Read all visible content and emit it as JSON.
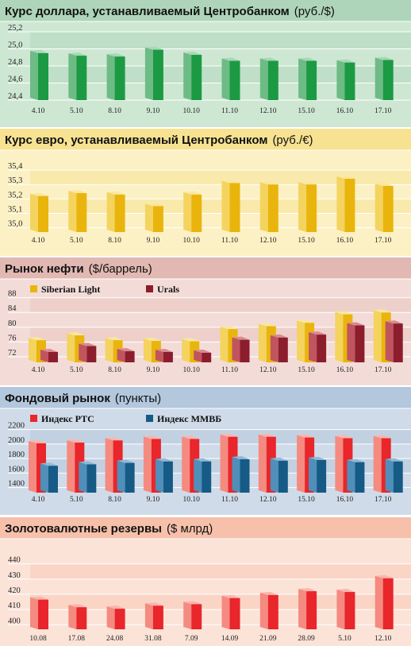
{
  "chart_data": [
    {
      "id": "usd",
      "type": "bar",
      "title": "Курс доллара, устанавливаемый Центробанком",
      "unit": "(руб./$)",
      "categories": [
        "4.10",
        "5.10",
        "8.10",
        "9.10",
        "10.10",
        "11.10",
        "12.10",
        "15.10",
        "16.10",
        "17.10"
      ],
      "yticks": [
        "25,2",
        "25,0",
        "24,8",
        "24,6",
        "24,4"
      ],
      "ylim": [
        24.4,
        25.2
      ],
      "series": [
        {
          "values": [
            24.95,
            24.92,
            24.91,
            24.99,
            24.93,
            24.86,
            24.86,
            24.86,
            24.84,
            24.87
          ]
        }
      ],
      "colors": {
        "bg": "#cde7d3",
        "band": "#b9dcc3",
        "title_bg": "#aed5b9",
        "bar": "#1c9a43",
        "bar_side": "#6dbb85",
        "bar_top": "#a8d8b5"
      }
    },
    {
      "id": "eur",
      "type": "bar",
      "title": "Курс евро, устанавливаемый Центробанком",
      "unit": "(руб./€)",
      "categories": [
        "4.10",
        "5.10",
        "8.10",
        "9.10",
        "10.10",
        "11.10",
        "12.10",
        "15.10",
        "16.10",
        "17.10"
      ],
      "yticks": [
        "35,4",
        "35,3",
        "35,2",
        "35,1",
        "35,0"
      ],
      "ylim": [
        34.97,
        35.45
      ],
      "series": [
        {
          "values": [
            35.22,
            35.24,
            35.23,
            35.15,
            35.23,
            35.31,
            35.3,
            35.3,
            35.34,
            35.29
          ]
        }
      ],
      "colors": {
        "bg": "#fcf1c4",
        "band": "#f8e6a0",
        "title_bg": "#f7e292",
        "bar": "#e9b50d",
        "bar_side": "#f4d35f",
        "bar_top": "#f9e7a0"
      }
    },
    {
      "id": "oil",
      "type": "bar",
      "title": "Рынок нефти",
      "unit": "($/баррель)",
      "categories": [
        "4.10",
        "5.10",
        "8.10",
        "9.10",
        "10.10",
        "11.10",
        "12.10",
        "15.10",
        "16.10",
        "17.10"
      ],
      "yticks": [
        "88",
        "84",
        "80",
        "76",
        "72"
      ],
      "ylim": [
        70.5,
        89
      ],
      "series": [
        {
          "name": "Siberian Light",
          "values": [
            76.5,
            77.8,
            76.5,
            76.3,
            76.2,
            79.5,
            80.3,
            81.2,
            83.5,
            84
          ]
        },
        {
          "name": "Urals",
          "values": [
            73.3,
            74.9,
            73.5,
            73.3,
            73.1,
            76.6,
            77.2,
            78,
            80.5,
            81
          ]
        }
      ],
      "colors": {
        "bg": "#f3dcd8",
        "band": "#ebcac5",
        "title_bg": "#e2b8b2",
        "bar": "#e9b50d",
        "bar_side": "#f4d35f",
        "bar_top": "#f9e7a0",
        "bar2": "#8b1d2c",
        "bar2_side": "#c0545f",
        "bar2_top": "#d98a90"
      }
    },
    {
      "id": "stocks",
      "type": "bar",
      "title": "Фондовый рынок",
      "unit": "(пункты)",
      "categories": [
        "4.10",
        "5.10",
        "8.10",
        "9.10",
        "10.10",
        "11.10",
        "12.10",
        "15.10",
        "16.10",
        "17.10"
      ],
      "yticks": [
        "2200",
        "2000",
        "1800",
        "1600",
        "1400"
      ],
      "ylim": [
        1330,
        2250
      ],
      "series": [
        {
          "name": "Индекс РТС",
          "values": [
            2010,
            2020,
            2050,
            2070,
            2070,
            2100,
            2100,
            2090,
            2080,
            2080
          ]
        },
        {
          "name": "Индекс ММВБ",
          "values": [
            1700,
            1720,
            1740,
            1760,
            1760,
            1790,
            1770,
            1780,
            1750,
            1760
          ]
        }
      ],
      "colors": {
        "bg": "#cfdbe8",
        "band": "#bccde0",
        "title_bg": "#b3c7dd",
        "bar": "#e8262b",
        "bar_side": "#f58a80",
        "bar_top": "#f9b5ad",
        "bar2": "#165a86",
        "bar2_side": "#4f8fba",
        "bar2_top": "#8fb9d6"
      }
    },
    {
      "id": "reserves",
      "type": "bar",
      "title": "Золотовалютные резервы",
      "unit": "($ млрд)",
      "categories": [
        "10.08",
        "17.08",
        "24.08",
        "31.08",
        "7.09",
        "14.09",
        "21.09",
        "28.09",
        "5.10",
        "12.10"
      ],
      "yticks": [
        "440",
        "430",
        "420",
        "410",
        "400"
      ],
      "ylim": [
        397,
        445
      ],
      "series": [
        {
          "values": [
            416.5,
            411.5,
            410.5,
            412.5,
            413.5,
            417.5,
            419.5,
            422,
            421.5,
            430.5
          ]
        }
      ],
      "colors": {
        "bg": "#fbe3d8",
        "band": "#f9cfbd",
        "title_bg": "#f6c0aa",
        "bar": "#e8262b",
        "bar_side": "#f58a80",
        "bar_top": "#f9b5ad"
      }
    }
  ]
}
